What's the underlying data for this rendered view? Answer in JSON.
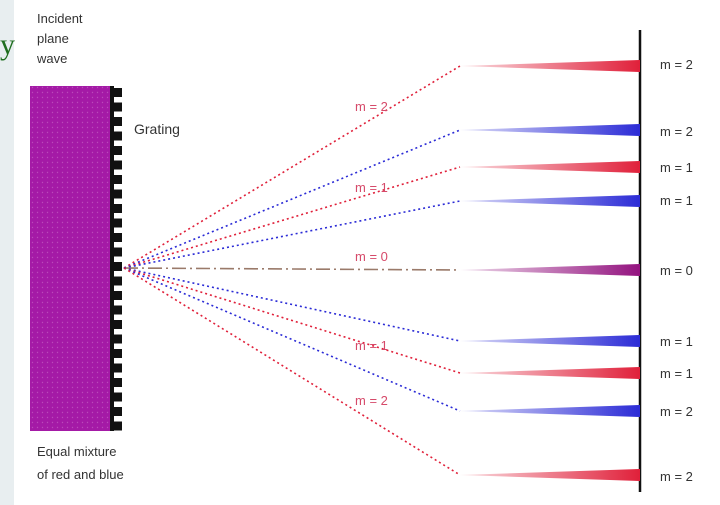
{
  "stray_glyph": "y",
  "incident": [
    "Incident",
    "plane",
    "wave"
  ],
  "grating_label": "Grating",
  "mixture": [
    "Equal mixture",
    "of red and blue"
  ],
  "colors": {
    "red": "#e0203a",
    "blue": "#2b2bd6",
    "magenta": "#93137f",
    "wave": "#a41aa6",
    "grating": "#111111",
    "center_line": "#9a7a6a",
    "text": "#333333",
    "order_text": "#d64a6a"
  },
  "ray_labels": [
    {
      "text": "m = 2"
    },
    {
      "text": "m = 1"
    },
    {
      "text": "m = 0"
    },
    {
      "text": "m = 1"
    },
    {
      "text": "m = 2"
    }
  ],
  "orders": [
    {
      "label": "m = 2",
      "color": "red"
    },
    {
      "label": "m = 2",
      "color": "blue"
    },
    {
      "label": "m = 1",
      "color": "red"
    },
    {
      "label": "m = 1",
      "color": "blue"
    },
    {
      "label": "m = 0",
      "color": "magenta"
    },
    {
      "label": "m = 1",
      "color": "blue"
    },
    {
      "label": "m = 1",
      "color": "red"
    },
    {
      "label": "m = 2",
      "color": "blue"
    },
    {
      "label": "m = 2",
      "color": "red"
    }
  ]
}
